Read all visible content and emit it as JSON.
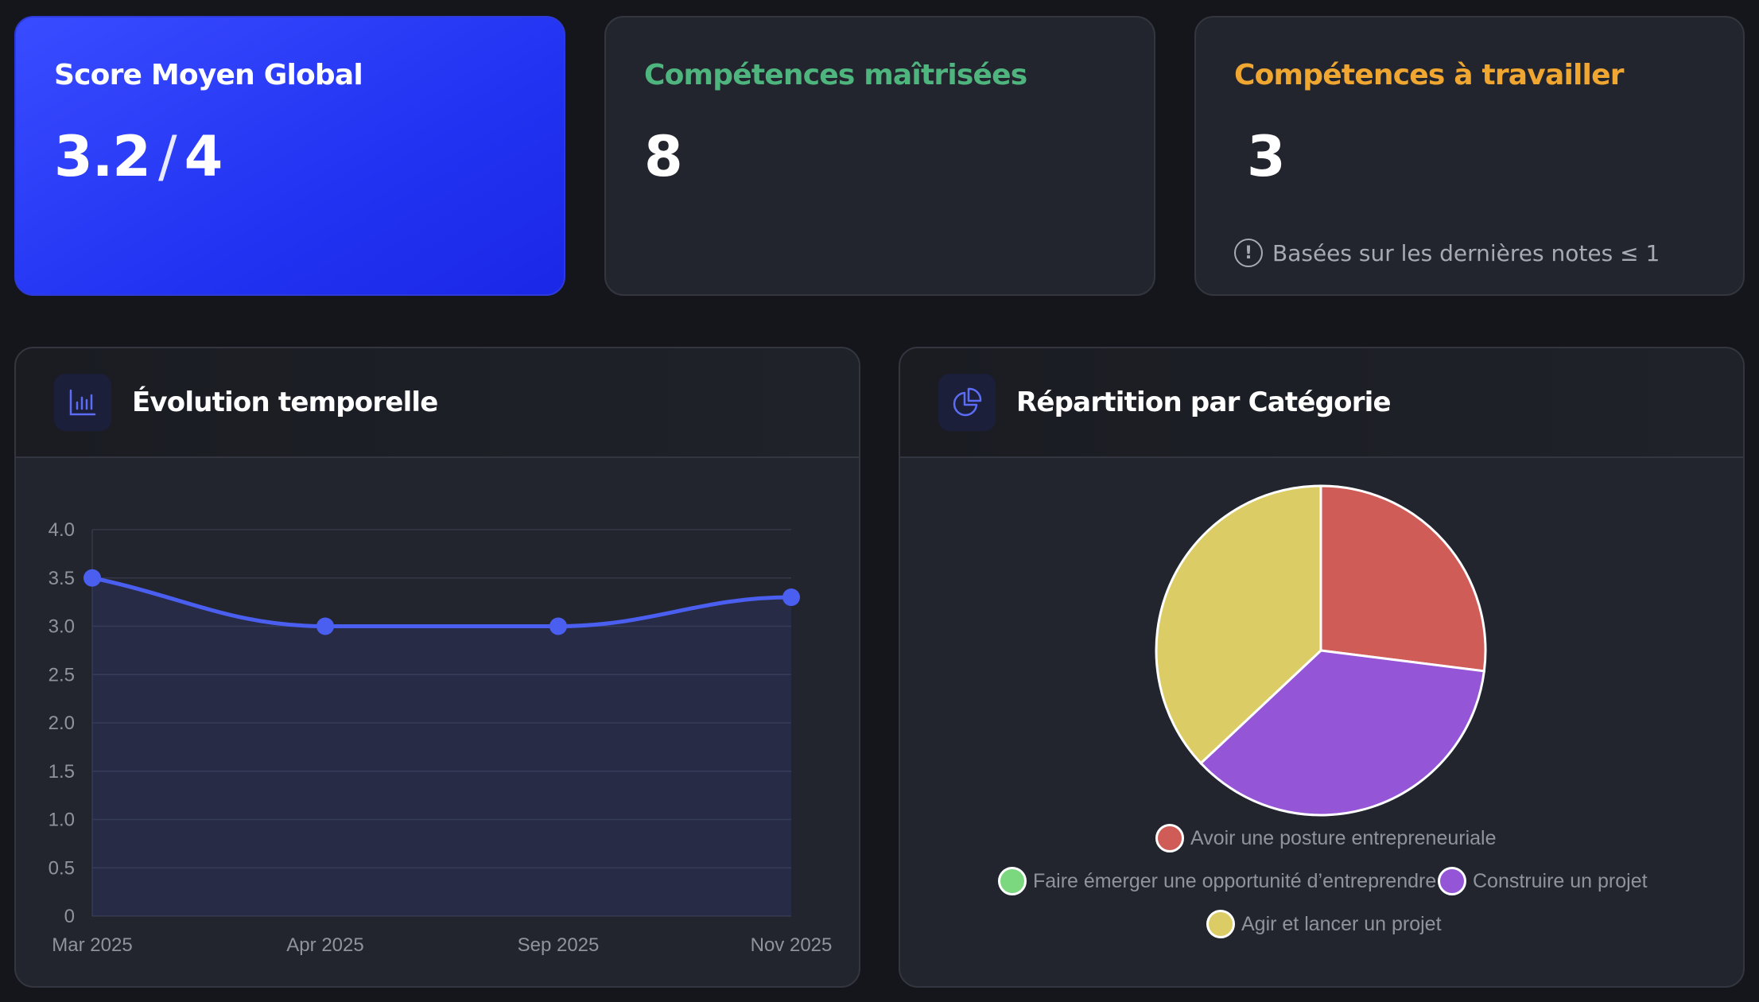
{
  "stats": {
    "score": {
      "title": "Score Moyen Global",
      "value": "3.2",
      "separator": "/",
      "max": "4"
    },
    "mastered": {
      "title": "Compétences maîtrisées",
      "value": "8"
    },
    "to_work": {
      "title": "Compétences à travailler",
      "value": "3",
      "note_icon": "!",
      "note": "Basées sur les dernières notes ≤ 1"
    }
  },
  "colors": {
    "accent": "#3b4df5",
    "green": "#4fb57e",
    "amber": "#f0a732",
    "line": "#4a5ef0"
  },
  "panels": {
    "evolution": {
      "title": "Évolution temporelle",
      "icon": "bar-chart-icon"
    },
    "repartition": {
      "title": "Répartition par Catégorie",
      "icon": "pie-chart-icon"
    }
  },
  "chart_data": [
    {
      "type": "line",
      "x": [
        "Mar 2025",
        "Apr 2025",
        "Sep 2025",
        "Nov 2025"
      ],
      "series": [
        {
          "values": [
            3.5,
            3.0,
            3.0,
            3.3
          ]
        }
      ],
      "ylim": [
        0,
        4
      ],
      "yticks": [
        "0",
        "0.5",
        "1.0",
        "1.5",
        "2.0",
        "2.5",
        "3.0",
        "3.5",
        "4.0"
      ],
      "grid": true,
      "fill": true,
      "smooth": true
    },
    {
      "type": "pie",
      "categories": [
        "Avoir une posture entrepreneuriale",
        "Faire émerger une opportunité d’entreprendre",
        "Construire un projet",
        "Agir et lancer un projet"
      ],
      "values": [
        27,
        0,
        36,
        37
      ],
      "colors": [
        "#d05c57",
        "#7bd87f",
        "#9455d6",
        "#dccc65"
      ],
      "legend": "bottom"
    }
  ]
}
